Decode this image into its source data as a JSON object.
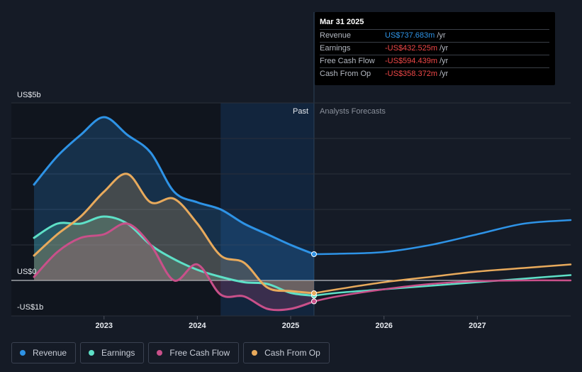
{
  "tooltip": {
    "date": "Mar 31 2025",
    "rows": [
      {
        "label": "Revenue",
        "value": "US$737.683m",
        "unit": "/yr",
        "color": "#2e93e6"
      },
      {
        "label": "Earnings",
        "value": "-US$432.525m",
        "unit": "/yr",
        "color": "#f04848"
      },
      {
        "label": "Free Cash Flow",
        "value": "-US$594.439m",
        "unit": "/yr",
        "color": "#f04848"
      },
      {
        "label": "Cash From Op",
        "value": "-US$358.372m",
        "unit": "/yr",
        "color": "#f04848"
      }
    ]
  },
  "legend": [
    {
      "label": "Revenue",
      "color": "#2e93e6"
    },
    {
      "label": "Earnings",
      "color": "#5ee0c7"
    },
    {
      "label": "Free Cash Flow",
      "color": "#c9508a"
    },
    {
      "label": "Cash From Op",
      "color": "#e8aa5c"
    }
  ],
  "chart_data": {
    "type": "area",
    "ylabel_top": "US$5b",
    "ylabel_zero": "US$0",
    "ylabel_bottom": "-US$1b",
    "ylim": [
      -1,
      5
    ],
    "xlim": [
      2022.25,
      2028.0
    ],
    "x_ticks": [
      2023,
      2024,
      2025,
      2026,
      2027
    ],
    "x_tick_labels": [
      "2023",
      "2024",
      "2025",
      "2026",
      "2027"
    ],
    "past_label": "Past",
    "forecast_label": "Analysts Forecasts",
    "past_boundary_x": 2025.25,
    "shaded_start_x": 2024.25,
    "series": [
      {
        "name": "Revenue",
        "color": "#2e93e6",
        "past": [
          [
            2022.25,
            2.7
          ],
          [
            2022.5,
            3.5
          ],
          [
            2022.75,
            4.1
          ],
          [
            2023.0,
            4.6
          ],
          [
            2023.25,
            4.1
          ],
          [
            2023.5,
            3.6
          ],
          [
            2023.75,
            2.5
          ],
          [
            2024.0,
            2.2
          ],
          [
            2024.25,
            2.0
          ],
          [
            2024.5,
            1.6
          ],
          [
            2024.75,
            1.3
          ],
          [
            2025.0,
            1.0
          ],
          [
            2025.25,
            0.74
          ]
        ],
        "forecast": [
          [
            2025.25,
            0.74
          ],
          [
            2025.5,
            0.75
          ],
          [
            2026.0,
            0.8
          ],
          [
            2026.5,
            1.0
          ],
          [
            2027.0,
            1.3
          ],
          [
            2027.5,
            1.6
          ],
          [
            2028.0,
            1.7
          ]
        ]
      },
      {
        "name": "Earnings",
        "color": "#5ee0c7",
        "past": [
          [
            2022.25,
            1.2
          ],
          [
            2022.5,
            1.6
          ],
          [
            2022.75,
            1.6
          ],
          [
            2023.0,
            1.8
          ],
          [
            2023.25,
            1.6
          ],
          [
            2023.5,
            1.0
          ],
          [
            2023.75,
            0.6
          ],
          [
            2024.0,
            0.3
          ],
          [
            2024.25,
            0.1
          ],
          [
            2024.5,
            -0.05
          ],
          [
            2024.75,
            -0.1
          ],
          [
            2025.0,
            -0.35
          ],
          [
            2025.25,
            -0.43
          ]
        ],
        "forecast": [
          [
            2025.25,
            -0.43
          ],
          [
            2025.5,
            -0.35
          ],
          [
            2026.0,
            -0.25
          ],
          [
            2026.5,
            -0.15
          ],
          [
            2027.0,
            -0.05
          ],
          [
            2027.5,
            0.05
          ],
          [
            2028.0,
            0.15
          ]
        ]
      },
      {
        "name": "Free Cash Flow",
        "color": "#c9508a",
        "past": [
          [
            2022.25,
            0.1
          ],
          [
            2022.5,
            0.8
          ],
          [
            2022.75,
            1.2
          ],
          [
            2023.0,
            1.3
          ],
          [
            2023.25,
            1.6
          ],
          [
            2023.5,
            1.0
          ],
          [
            2023.75,
            0.0
          ],
          [
            2024.0,
            0.45
          ],
          [
            2024.25,
            -0.4
          ],
          [
            2024.5,
            -0.45
          ],
          [
            2024.75,
            -0.8
          ],
          [
            2025.0,
            -0.8
          ],
          [
            2025.25,
            -0.59
          ]
        ],
        "forecast": [
          [
            2025.25,
            -0.59
          ],
          [
            2025.5,
            -0.45
          ],
          [
            2026.0,
            -0.25
          ],
          [
            2026.5,
            -0.1
          ],
          [
            2027.0,
            -0.02
          ],
          [
            2027.5,
            0.0
          ],
          [
            2028.0,
            0.0
          ]
        ]
      },
      {
        "name": "Cash From Op",
        "color": "#e8aa5c",
        "past": [
          [
            2022.25,
            0.7
          ],
          [
            2022.5,
            1.3
          ],
          [
            2022.75,
            1.8
          ],
          [
            2023.0,
            2.5
          ],
          [
            2023.25,
            3.0
          ],
          [
            2023.5,
            2.2
          ],
          [
            2023.75,
            2.3
          ],
          [
            2024.0,
            1.6
          ],
          [
            2024.25,
            0.7
          ],
          [
            2024.5,
            0.5
          ],
          [
            2024.75,
            -0.2
          ],
          [
            2025.0,
            -0.3
          ],
          [
            2025.25,
            -0.36
          ]
        ],
        "forecast": [
          [
            2025.25,
            -0.36
          ],
          [
            2025.5,
            -0.25
          ],
          [
            2026.0,
            -0.05
          ],
          [
            2026.5,
            0.1
          ],
          [
            2027.0,
            0.25
          ],
          [
            2027.5,
            0.35
          ],
          [
            2028.0,
            0.45
          ]
        ]
      }
    ]
  }
}
